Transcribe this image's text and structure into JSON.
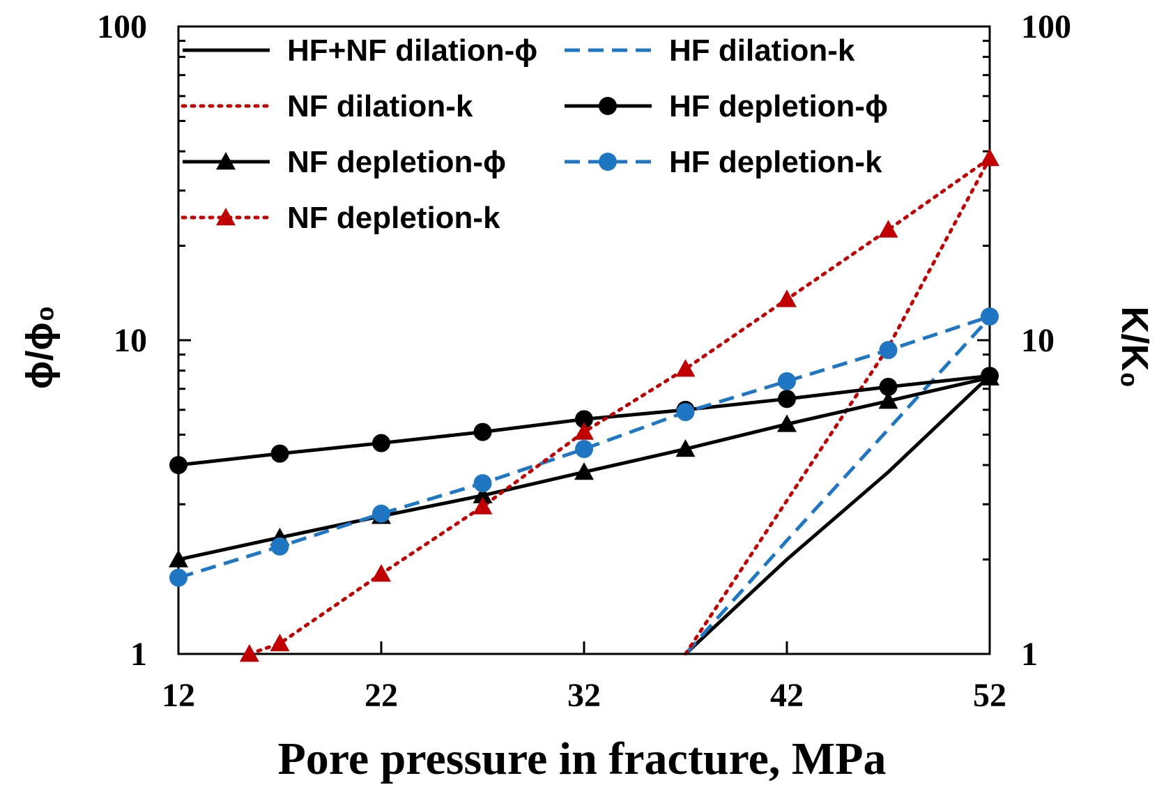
{
  "chart_data": {
    "type": "line",
    "xlabel": "Pore pressure in fracture, MPa",
    "ylabel_left": "ϕ/ϕ₀",
    "ylabel_right": "K/K₀",
    "x_ticks": [
      12,
      22,
      32,
      42,
      52
    ],
    "xlim": [
      12,
      52
    ],
    "ylim": [
      1,
      100
    ],
    "y_scale": "log",
    "y_ticks": [
      1,
      10,
      100
    ],
    "y_tick_labels": [
      "1",
      "10",
      "100"
    ],
    "legend_position": "top-left",
    "series": [
      {
        "name": "HF+NF dilation-ϕ",
        "color": "#000000",
        "style": "solid",
        "marker": "none",
        "x": [
          37,
          42,
          47,
          52
        ],
        "y": [
          1.0,
          2.0,
          3.8,
          7.7
        ]
      },
      {
        "name": "HF dilation-k",
        "color": "#1f77c4",
        "style": "dashed",
        "marker": "none",
        "x": [
          37,
          42,
          47,
          52
        ],
        "y": [
          1.0,
          2.3,
          5.2,
          11.8
        ]
      },
      {
        "name": "NF dilation-k",
        "color": "#c00000",
        "style": "dotted",
        "marker": "none",
        "x": [
          37,
          47,
          52
        ],
        "y": [
          1.0,
          9.5,
          38
        ]
      },
      {
        "name": "HF depletion-ϕ",
        "color": "#000000",
        "style": "solid",
        "marker": "circle",
        "x": [
          12,
          17,
          22,
          27,
          32,
          37,
          42,
          47,
          52
        ],
        "y": [
          4.0,
          4.35,
          4.7,
          5.1,
          5.6,
          6.0,
          6.5,
          7.1,
          7.7
        ]
      },
      {
        "name": "NF depletion-ϕ",
        "color": "#000000",
        "style": "solid",
        "marker": "triangle",
        "x": [
          12,
          17,
          22,
          27,
          32,
          37,
          42,
          47,
          52
        ],
        "y": [
          2.0,
          2.35,
          2.75,
          3.2,
          3.8,
          4.5,
          5.4,
          6.4,
          7.6
        ]
      },
      {
        "name": "HF depletion-k",
        "color": "#1f77c4",
        "style": "dashed",
        "marker": "circle",
        "x": [
          12,
          17,
          22,
          27,
          32,
          37,
          42,
          47,
          52
        ],
        "y": [
          1.75,
          2.2,
          2.8,
          3.5,
          4.5,
          5.9,
          7.4,
          9.3,
          11.9
        ]
      },
      {
        "name": "NF depletion-k",
        "color": "#c00000",
        "style": "dotted",
        "marker": "triangle",
        "x": [
          15.5,
          17,
          22,
          27,
          32,
          37,
          42,
          47,
          52
        ],
        "y": [
          1.0,
          1.08,
          1.8,
          2.95,
          5.1,
          8.1,
          13.5,
          22.5,
          38
        ]
      }
    ]
  }
}
